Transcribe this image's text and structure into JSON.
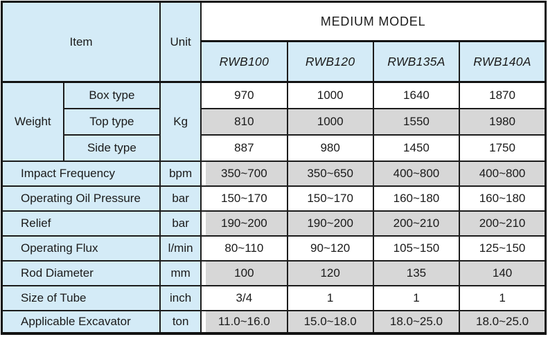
{
  "table": {
    "header": {
      "item_label": "Item",
      "unit_label": "Unit",
      "group_label": "MEDIUM MODEL",
      "models": [
        "RWB100",
        "RWB120",
        "RWB135A",
        "RWB140A"
      ]
    },
    "weight": {
      "label": "Weight",
      "unit": "Kg",
      "rows": [
        {
          "type": "Box type",
          "shade": false,
          "values": [
            "970",
            "1000",
            "1640",
            "1870"
          ]
        },
        {
          "type": "Top type",
          "shade": true,
          "values": [
            "810",
            "1000",
            "1550",
            "1980"
          ]
        },
        {
          "type": "Side type",
          "shade": false,
          "values": [
            "887",
            "980",
            "1450",
            "1750"
          ]
        }
      ]
    },
    "rows": [
      {
        "label": "Impact Frequency",
        "unit": "bpm",
        "shade": true,
        "values": [
          "350~700",
          "350~650",
          "400~800",
          "400~800"
        ]
      },
      {
        "label": "Operating Oil Pressure",
        "unit": "bar",
        "shade": false,
        "values": [
          "150~170",
          "150~170",
          "160~180",
          "160~180"
        ]
      },
      {
        "label": "Relief",
        "unit": "bar",
        "shade": true,
        "values": [
          "190~200",
          "190~200",
          "200~210",
          "200~210"
        ]
      },
      {
        "label": "Operating Flux",
        "unit": "l/min",
        "shade": false,
        "values": [
          "80~110",
          "90~120",
          "105~150",
          "125~150"
        ]
      },
      {
        "label": "Rod Diameter",
        "unit": "mm",
        "shade": true,
        "values": [
          "100",
          "120",
          "135",
          "140"
        ]
      },
      {
        "label": "Size of Tube",
        "unit": "inch",
        "shade": false,
        "values": [
          "3/4",
          "1",
          "1",
          "1"
        ]
      },
      {
        "label": "Applicable Excavator",
        "unit": "ton",
        "shade": true,
        "values": [
          "11.0~16.0",
          "15.0~18.0",
          "18.0~25.0",
          "18.0~25.0"
        ]
      }
    ],
    "colors": {
      "header_blue": "#d4ebf7",
      "shade_gray": "#d7d7d7",
      "border_black": "#121212"
    }
  }
}
